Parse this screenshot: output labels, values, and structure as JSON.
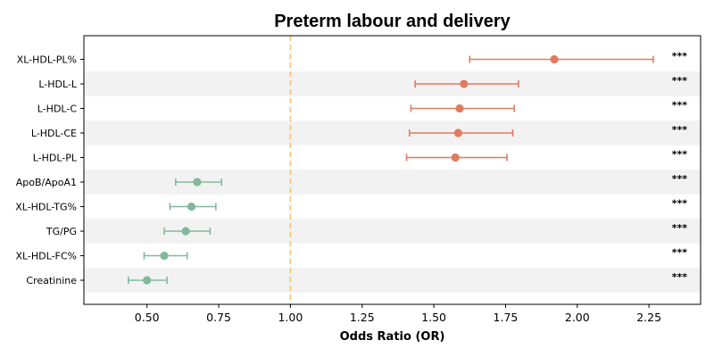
{
  "chart_data": {
    "type": "scatter",
    "subtype": "forest-plot",
    "title": "Preterm labour and delivery",
    "xlabel": "Odds Ratio (OR)",
    "ylabel": "",
    "xlim": [
      0.28,
      2.43
    ],
    "xticks": [
      0.5,
      0.75,
      1.0,
      1.25,
      1.5,
      1.75,
      2.0,
      2.25
    ],
    "xtick_labels": [
      "0.50",
      "0.75",
      "1.00",
      "1.25",
      "1.50",
      "1.75",
      "2.00",
      "2.25"
    ],
    "reference_line": {
      "x": 1.0,
      "style": "dashed",
      "color": "#f5c77e"
    },
    "alternating_row_shading": true,
    "grid": false,
    "colors": {
      "risk": "#e07b5f",
      "protective": "#82b99d",
      "row_shade": "#f2f2f2"
    },
    "rows": [
      {
        "label": "XL-HDL-PL%",
        "or": 1.92,
        "ci_low": 1.625,
        "ci_high": 2.265,
        "significance": "***",
        "group": "risk"
      },
      {
        "label": "L-HDL-L",
        "or": 1.605,
        "ci_low": 1.435,
        "ci_high": 1.795,
        "significance": "***",
        "group": "risk"
      },
      {
        "label": "L-HDL-C",
        "or": 1.59,
        "ci_low": 1.42,
        "ci_high": 1.78,
        "significance": "***",
        "group": "risk"
      },
      {
        "label": "L-HDL-CE",
        "or": 1.585,
        "ci_low": 1.415,
        "ci_high": 1.775,
        "significance": "***",
        "group": "risk"
      },
      {
        "label": "L-HDL-PL",
        "or": 1.575,
        "ci_low": 1.405,
        "ci_high": 1.755,
        "significance": "***",
        "group": "risk"
      },
      {
        "label": "ApoB/ApoA1",
        "or": 0.675,
        "ci_low": 0.6,
        "ci_high": 0.76,
        "significance": "***",
        "group": "protective"
      },
      {
        "label": "XL-HDL-TG%",
        "or": 0.655,
        "ci_low": 0.58,
        "ci_high": 0.74,
        "significance": "***",
        "group": "protective"
      },
      {
        "label": "TG/PG",
        "or": 0.635,
        "ci_low": 0.56,
        "ci_high": 0.72,
        "significance": "***",
        "group": "protective"
      },
      {
        "label": "XL-HDL-FC%",
        "or": 0.56,
        "ci_low": 0.49,
        "ci_high": 0.64,
        "significance": "***",
        "group": "protective"
      },
      {
        "label": "Creatinine",
        "or": 0.5,
        "ci_low": 0.435,
        "ci_high": 0.57,
        "significance": "***",
        "group": "protective"
      }
    ]
  }
}
